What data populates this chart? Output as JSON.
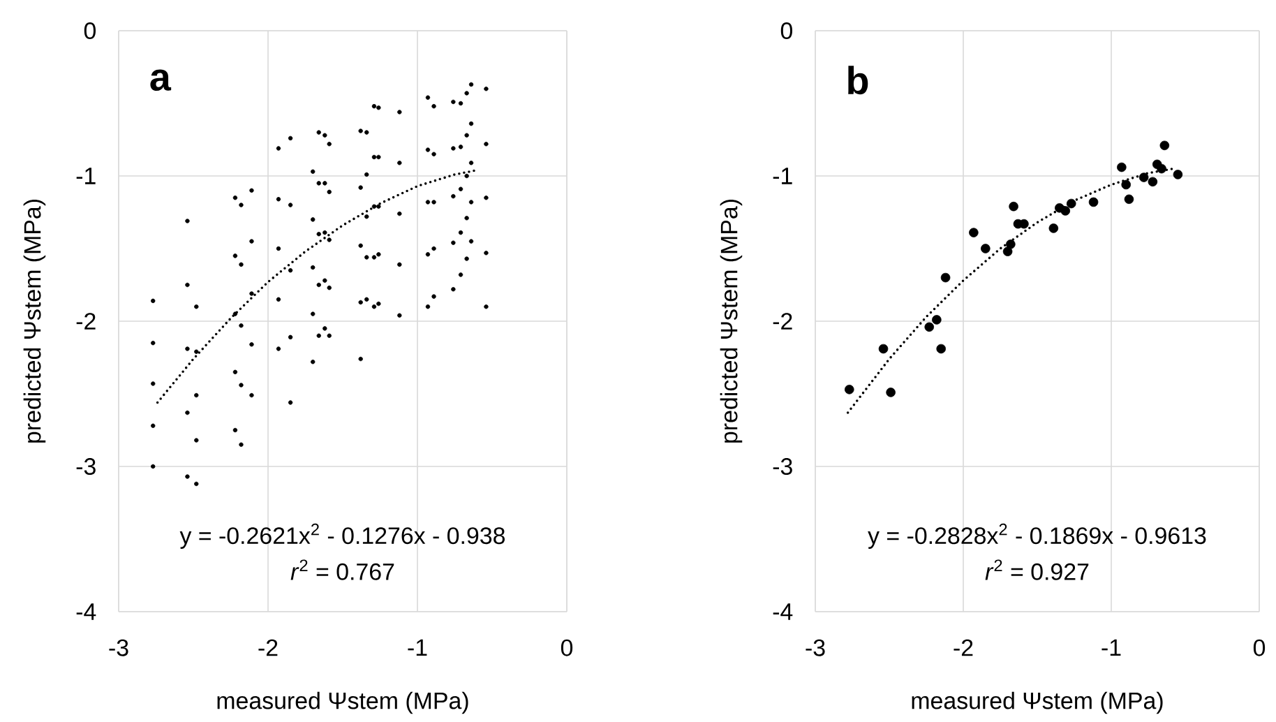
{
  "chart_data": [
    {
      "type": "scatter",
      "title": "a",
      "xlabel": "measured Ψstem (MPa)",
      "ylabel": "predicted Ψstem (MPa)",
      "xlim": [
        -3,
        0
      ],
      "ylim": [
        -4,
        0
      ],
      "xticks": [
        -3,
        -2,
        -1,
        0
      ],
      "yticks": [
        -4,
        -3,
        -2,
        -1,
        0
      ],
      "grid": true,
      "marker": "circle",
      "annotations": [
        "y = -0.2621x$^{2}$ - 0.1276x - 0.938",
        "*r*$^{2}$ = 0.767"
      ],
      "series": [
        {
          "color": "#000000",
          "x": [
            -2.77,
            -2.77,
            -2.77,
            -2.77,
            -2.77,
            -2.54,
            -2.54,
            -2.54,
            -2.54,
            -2.54,
            -2.48,
            -2.48,
            -2.48,
            -2.48,
            -2.48,
            -2.22,
            -2.22,
            -2.22,
            -2.22,
            -2.22,
            -2.18,
            -2.18,
            -2.18,
            -2.18,
            -2.18,
            -2.11,
            -2.11,
            -2.11,
            -2.11,
            -2.11,
            -1.93,
            -1.93,
            -1.93,
            -1.93,
            -1.93,
            -1.85,
            -1.85,
            -1.85,
            -1.85,
            -1.85,
            -1.7,
            -1.7,
            -1.7,
            -1.7,
            -1.7,
            -1.66,
            -1.66,
            -1.66,
            -1.66,
            -1.66,
            -1.62,
            -1.62,
            -1.62,
            -1.62,
            -1.62,
            -1.59,
            -1.59,
            -1.59,
            -1.59,
            -1.59,
            -1.38,
            -1.38,
            -1.38,
            -1.38,
            -1.38,
            -1.34,
            -1.34,
            -1.34,
            -1.34,
            -1.34,
            -1.29,
            -1.29,
            -1.29,
            -1.29,
            -1.29,
            -1.26,
            -1.26,
            -1.26,
            -1.26,
            -1.26,
            -1.12,
            -1.12,
            -1.12,
            -1.12,
            -1.12,
            -0.93,
            -0.93,
            -0.93,
            -0.93,
            -0.93,
            -0.89,
            -0.89,
            -0.89,
            -0.89,
            -0.89,
            -0.76,
            -0.76,
            -0.76,
            -0.76,
            -0.76,
            -0.71,
            -0.71,
            -0.71,
            -0.71,
            -0.71,
            -0.67,
            -0.67,
            -0.67,
            -0.67,
            -0.67,
            -0.64,
            -0.64,
            -0.64,
            -0.64,
            -0.64,
            -0.54,
            -0.54,
            -0.54,
            -0.54,
            -0.54
          ],
          "values": [
            -1.86,
            -2.15,
            -2.43,
            -2.72,
            -3.0,
            -1.31,
            -1.75,
            -2.19,
            -2.63,
            -3.07,
            -1.9,
            -2.21,
            -2.51,
            -2.82,
            -3.12,
            -1.15,
            -1.55,
            -1.95,
            -2.35,
            -2.75,
            -1.2,
            -1.61,
            -2.03,
            -2.44,
            -2.85,
            -1.1,
            -1.45,
            -1.81,
            -2.16,
            -2.51,
            -0.81,
            -1.16,
            -1.5,
            -1.85,
            -2.19,
            -0.74,
            -1.2,
            -1.65,
            -2.11,
            -2.56,
            -0.97,
            -1.3,
            -1.63,
            -1.95,
            -2.28,
            -0.7,
            -1.05,
            -1.4,
            -1.75,
            -2.1,
            -0.72,
            -1.05,
            -1.39,
            -1.72,
            -2.05,
            -0.78,
            -1.11,
            -1.44,
            -1.77,
            -2.1,
            -0.69,
            -1.08,
            -1.48,
            -1.87,
            -2.26,
            -0.7,
            -0.99,
            -1.28,
            -1.56,
            -1.85,
            -0.52,
            -0.87,
            -1.21,
            -1.56,
            -1.9,
            -0.53,
            -0.87,
            -1.21,
            -1.54,
            -1.88,
            -0.56,
            -0.91,
            -1.26,
            -1.61,
            -1.96,
            -0.46,
            -0.82,
            -1.18,
            -1.54,
            -1.9,
            -0.52,
            -0.85,
            -1.18,
            -1.5,
            -1.83,
            -0.49,
            -0.81,
            -1.14,
            -1.46,
            -1.78,
            -0.5,
            -0.8,
            -1.09,
            -1.39,
            -1.68,
            -0.43,
            -0.72,
            -1.0,
            -1.29,
            -1.57,
            -0.37,
            -0.64,
            -0.91,
            -1.18,
            -1.45,
            -0.4,
            -0.78,
            -1.15,
            -1.53,
            -1.9
          ]
        },
        {
          "type": "line",
          "color": "#000000",
          "line_style": "dotted",
          "marker": "none",
          "x": [
            -2.74,
            -2.5,
            -2.25,
            -2,
            -1.75,
            -1.5,
            -1.25,
            -1,
            -0.75,
            -0.6
          ],
          "values": [
            -2.56,
            -2.26,
            -1.98,
            -1.73,
            -1.52,
            -1.34,
            -1.19,
            -1.07,
            -0.99,
            -0.96
          ]
        }
      ]
    },
    {
      "type": "scatter",
      "title": "b",
      "xlabel": "measured Ψstem (MPa)",
      "ylabel": "predicted Ψstem (MPa)",
      "xlim": [
        -3,
        0
      ],
      "ylim": [
        -4,
        0
      ],
      "xticks": [
        -3,
        -2,
        -1,
        0
      ],
      "yticks": [
        -4,
        -3,
        -2,
        -1,
        0
      ],
      "grid": true,
      "marker": "circle",
      "annotations": [
        "y = -0.2828x$^{2}$ - 0.1869x - 0.9613",
        "*r*$^{2}$ = 0.927"
      ],
      "series": [
        {
          "color": "#000000",
          "x": [
            -2.77,
            -2.49,
            -2.54,
            -2.23,
            -2.18,
            -2.15,
            -2.12,
            -1.93,
            -1.85,
            -1.7,
            -1.68,
            -1.66,
            -1.63,
            -1.59,
            -1.39,
            -1.35,
            -1.31,
            -1.27,
            -1.12,
            -0.93,
            -0.9,
            -0.88,
            -0.78,
            -0.72,
            -0.69,
            -0.66,
            -0.64,
            -0.55
          ],
          "values": [
            -2.47,
            -2.49,
            -2.19,
            -2.04,
            -1.99,
            -2.19,
            -1.7,
            -1.39,
            -1.5,
            -1.52,
            -1.47,
            -1.21,
            -1.33,
            -1.33,
            -1.36,
            -1.22,
            -1.24,
            -1.19,
            -1.18,
            -0.94,
            -1.06,
            -1.16,
            -1.01,
            -1.04,
            -0.92,
            -0.95,
            -0.79,
            -0.99
          ]
        },
        {
          "type": "line",
          "color": "#000000",
          "line_style": "dotted",
          "marker": "none",
          "x": [
            -2.78,
            -2.5,
            -2.25,
            -2,
            -1.75,
            -1.5,
            -1.25,
            -1,
            -0.75,
            -0.58
          ],
          "values": [
            -2.63,
            -2.26,
            -1.97,
            -1.72,
            -1.5,
            -1.32,
            -1.17,
            -1.06,
            -0.98,
            -0.95
          ]
        }
      ]
    }
  ]
}
